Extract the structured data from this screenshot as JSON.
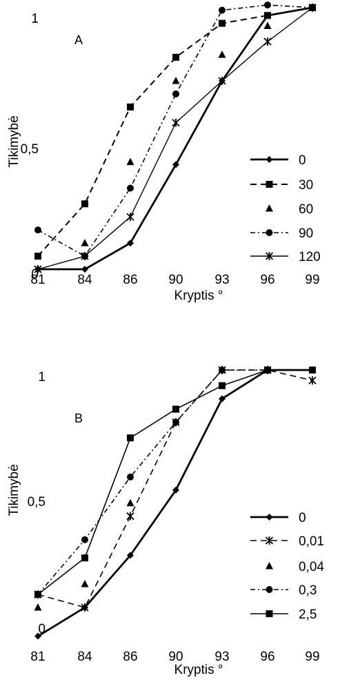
{
  "chart_data": [
    {
      "type": "line",
      "panel_label": "A",
      "xlabel": "Kryptis °",
      "ylabel": "Tikimybė",
      "categories": [
        "81",
        "84",
        "86",
        "90",
        "93",
        "96",
        "99"
      ],
      "y_ticks": [
        "0",
        "0,5",
        "1"
      ],
      "ylim": [
        0,
        1
      ],
      "grid": false,
      "legend_position": "right",
      "series": [
        {
          "name": "0",
          "values": [
            0,
            0,
            0.1,
            0.4,
            0.72,
            0.97,
            1
          ]
        },
        {
          "name": "30",
          "values": [
            0.05,
            0.25,
            0.62,
            0.81,
            0.94,
            0.97,
            1
          ]
        },
        {
          "name": "60",
          "values": [
            null,
            0.1,
            0.41,
            0.72,
            0.82,
            0.93,
            1
          ]
        },
        {
          "name": "90",
          "values": [
            0.15,
            0.05,
            0.31,
            0.67,
            0.99,
            1.01,
            1
          ]
        },
        {
          "name": "120",
          "values": [
            0,
            0.05,
            0.2,
            0.56,
            0.72,
            0.87,
            1
          ]
        }
      ]
    },
    {
      "type": "line",
      "panel_label": "B",
      "xlabel": "Kryptis °",
      "ylabel": "Tikimybė",
      "categories": [
        "81",
        "84",
        "86",
        "90",
        "93",
        "96",
        "99"
      ],
      "y_ticks": [
        "0",
        "0,5",
        "1"
      ],
      "ylim": [
        0,
        1
      ],
      "grid": false,
      "legend_position": "right",
      "series": [
        {
          "name": "0",
          "values": [
            -0.02,
            0.09,
            0.29,
            0.54,
            0.89,
            1,
            1
          ]
        },
        {
          "name": "0,01",
          "values": [
            0.14,
            0.09,
            0.44,
            0.8,
            1,
            1,
            0.96
          ]
        },
        {
          "name": "0,04",
          "values": [
            0.09,
            0.18,
            0.49,
            null,
            1,
            1,
            1
          ]
        },
        {
          "name": "0,3",
          "values": [
            0.14,
            0.35,
            0.59,
            0.8,
            1,
            1,
            1
          ]
        },
        {
          "name": "2,5",
          "values": [
            0.14,
            0.28,
            0.74,
            0.85,
            0.94,
            1,
            1
          ]
        }
      ]
    }
  ]
}
